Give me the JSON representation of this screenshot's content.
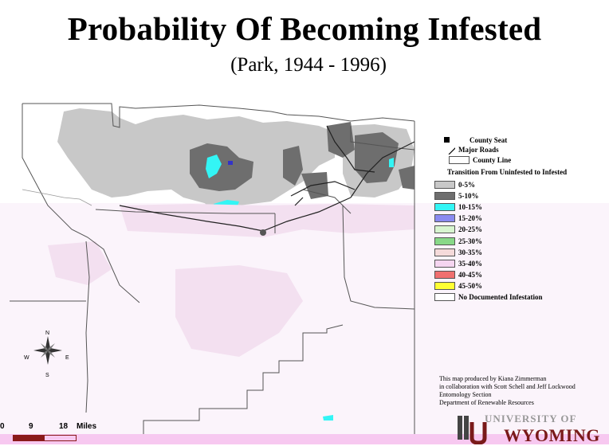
{
  "title": "Probability Of Becoming Infested",
  "subtitle": "(Park, 1944 - 1996)",
  "legend": {
    "symbols": [
      {
        "label": "County Seat",
        "icon": "county-seat-marker"
      },
      {
        "label": "Major Roads",
        "icon": "road-line"
      },
      {
        "label": "County Line",
        "icon": "county-line-box"
      }
    ],
    "heading": "Transition From Uninfested to Infested",
    "classes": [
      {
        "label": "0-5%",
        "color": "#c8c8c8"
      },
      {
        "label": "5-10%",
        "color": "#6e6e6e"
      },
      {
        "label": "10-15%",
        "color": "#33f5f5"
      },
      {
        "label": "15-20%",
        "color": "#8a8af0"
      },
      {
        "label": "20-25%",
        "color": "#d8f5d0"
      },
      {
        "label": "25-30%",
        "color": "#88d888"
      },
      {
        "label": "30-35%",
        "color": "#f5dada"
      },
      {
        "label": "35-40%",
        "color": "#f5d5f0"
      },
      {
        "label": "40-45%",
        "color": "#f07070"
      },
      {
        "label": "45-50%",
        "color": "#ffff33"
      },
      {
        "label": "No Documented Infestation",
        "color": "#ffffff"
      }
    ]
  },
  "credits": [
    "This map produced by Kiana Zimmerman",
    "in collaboration with Scott Schell and Jeff Lockwood",
    "Entomology Section",
    "Department of Renewable Resources"
  ],
  "compass": {
    "n": "N",
    "s": "S",
    "e": "E",
    "w": "W"
  },
  "scale": {
    "labels": [
      "0",
      "9",
      "18"
    ],
    "unit": "Miles"
  },
  "logo": {
    "line1": "UNIVERSITY OF",
    "line2": "WYOMING"
  }
}
